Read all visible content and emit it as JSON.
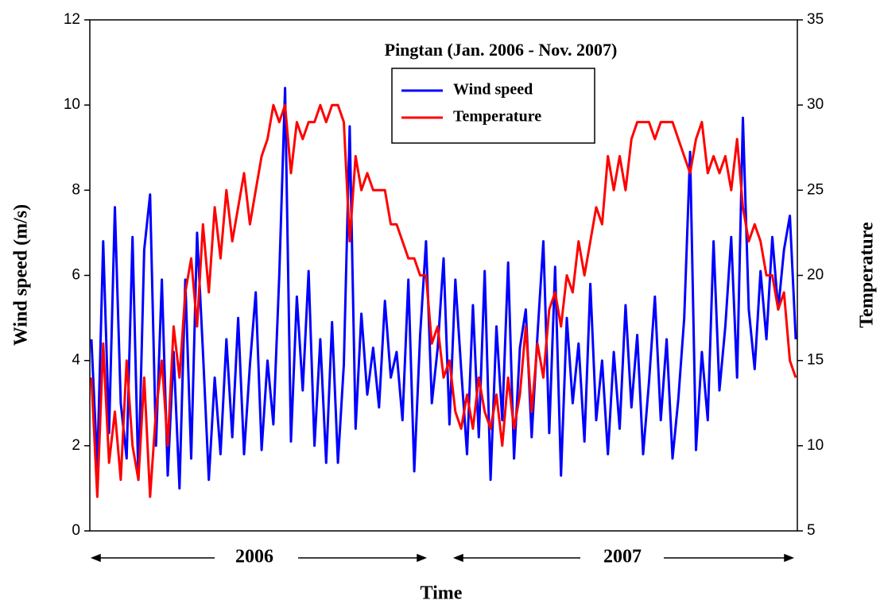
{
  "chart_data": {
    "type": "line",
    "title": "Pingtan (Jan. 2006 - Nov. 2007)",
    "xlabel": "Time",
    "ylabel": "Wind speed (m/s)",
    "y2label": "Temperature",
    "annotations": [
      "2006",
      "2007"
    ],
    "categories": [
      null,
      null,
      null,
      null,
      null,
      null,
      null,
      null,
      null,
      null,
      null,
      null,
      null,
      null,
      null,
      null,
      null,
      null,
      null,
      null,
      null,
      null,
      null,
      null,
      null,
      null,
      null,
      null,
      null,
      null,
      null,
      null,
      null,
      null,
      null,
      null,
      null,
      null,
      null,
      null,
      null,
      null,
      null,
      null,
      null,
      null,
      null,
      null,
      null,
      null,
      null,
      null,
      null,
      null,
      null,
      null,
      null,
      null,
      null,
      null,
      null,
      null,
      null,
      null,
      null,
      null,
      null,
      null,
      null,
      null,
      null,
      null,
      null,
      null,
      null,
      null,
      null,
      null,
      null,
      null,
      null,
      null,
      null,
      null,
      null,
      null,
      null,
      null,
      null,
      null,
      null,
      null,
      null,
      null,
      null,
      null,
      null,
      null,
      null,
      null,
      null,
      null,
      null,
      null,
      null,
      null,
      null,
      null,
      null,
      null,
      null,
      null,
      null,
      null,
      null,
      null,
      null,
      null,
      null,
      null,
      null
    ],
    "series": [
      {
        "name": "Wind speed",
        "color": "#0000ff",
        "values": [
          4.5,
          1.5,
          6.8,
          2.3,
          7.6,
          3.0,
          1.7,
          6.9,
          1.2,
          6.6,
          7.9,
          2.0,
          5.9,
          1.3,
          4.2,
          1.0,
          5.9,
          1.7,
          7.0,
          4.2,
          1.2,
          3.6,
          1.8,
          4.5,
          2.2,
          5.0,
          1.8,
          3.9,
          5.6,
          1.9,
          4.0,
          2.5,
          6.0,
          10.4,
          2.1,
          5.5,
          3.3,
          6.1,
          2.0,
          4.5,
          1.6,
          4.9,
          1.6,
          3.9,
          9.5,
          2.4,
          5.1,
          3.2,
          4.3,
          2.9,
          5.4,
          3.6,
          4.2,
          2.6,
          5.9,
          1.4,
          4.6,
          6.8,
          3.0,
          4.3,
          6.4,
          2.5,
          5.9,
          3.8,
          1.8,
          5.3,
          2.2,
          6.1,
          1.2,
          4.8,
          2.6,
          6.3,
          1.7,
          4.3,
          5.2,
          2.2,
          4.6,
          6.8,
          2.3,
          6.2,
          1.3,
          5.0,
          3.0,
          4.4,
          2.1,
          5.8,
          2.6,
          4.0,
          1.8,
          4.2,
          2.4,
          5.3,
          2.9,
          4.6,
          1.8,
          3.5,
          5.5,
          2.6,
          4.5,
          1.7,
          3.1,
          5.0,
          8.9,
          1.9,
          4.2,
          2.6,
          6.8,
          3.3,
          4.8,
          6.9,
          3.6,
          9.7,
          5.2,
          3.8,
          6.1,
          4.5,
          6.9,
          5.2,
          6.6,
          7.4,
          4.5
        ]
      },
      {
        "name": "Temperature",
        "color": "#ff0000",
        "axis": "y2",
        "values": [
          14,
          7,
          16,
          9,
          12,
          8,
          15,
          10,
          8,
          14,
          7,
          12,
          15,
          10,
          17,
          14,
          19,
          21,
          17,
          23,
          19,
          24,
          21,
          25,
          22,
          24,
          26,
          23,
          25,
          27,
          28,
          30,
          29,
          30,
          26,
          29,
          28,
          29,
          29,
          30,
          29,
          30,
          30,
          29,
          22,
          27,
          25,
          26,
          25,
          25,
          25,
          23,
          23,
          22,
          21,
          21,
          20,
          20,
          16,
          17,
          14,
          15,
          12,
          11,
          13,
          11,
          14,
          12,
          11,
          13,
          10,
          14,
          11,
          13,
          17,
          12,
          16,
          14,
          18,
          19,
          17,
          20,
          19,
          22,
          20,
          22,
          24,
          23,
          27,
          25,
          27,
          25,
          28,
          29,
          29,
          29,
          28,
          29,
          29,
          29,
          28,
          27,
          26,
          28,
          29,
          26,
          27,
          26,
          27,
          25,
          28,
          24,
          22,
          23,
          22,
          20,
          20,
          18,
          19,
          15,
          14
        ]
      }
    ],
    "ylim": [
      0,
      12
    ],
    "yticks": [
      0,
      2,
      4,
      6,
      8,
      10,
      12
    ],
    "y2lim": [
      5,
      35
    ],
    "y2ticks": [
      5,
      10,
      15,
      20,
      25,
      30,
      35
    ],
    "legend": "top-center"
  }
}
